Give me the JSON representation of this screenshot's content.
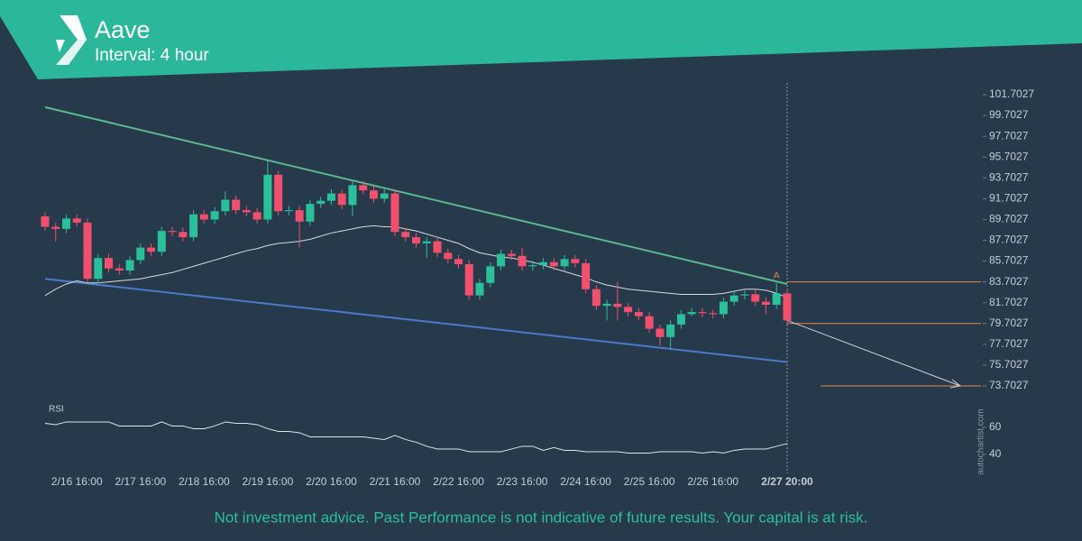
{
  "header": {
    "title": "Aave",
    "subtitle": "Interval: 4 hour"
  },
  "chart_data": [
    {
      "type": "candlestick",
      "categories": [
        null,
        null,
        null,
        "2/16 16:00",
        null,
        null,
        null,
        null,
        null,
        "2/17 16:00",
        null,
        null,
        null,
        null,
        null,
        "2/18 16:00",
        null,
        null,
        null,
        null,
        null,
        "2/19 16:00",
        null,
        null,
        null,
        null,
        null,
        "2/20 16:00",
        null,
        null,
        null,
        null,
        null,
        "2/21 16:00",
        null,
        null,
        null,
        null,
        null,
        "2/22 16:00",
        null,
        null,
        null,
        null,
        null,
        "2/23 16:00",
        null,
        null,
        null,
        null,
        null,
        "2/24 16:00",
        null,
        null,
        null,
        null,
        null,
        "2/25 16:00",
        null,
        null,
        null,
        null,
        null,
        "2/26 16:00",
        null,
        null,
        null,
        null,
        null,
        null,
        "2/27 20:00"
      ],
      "open": [
        90.0,
        89.0,
        88.8,
        89.8,
        89.4,
        84.0,
        86.0,
        85.0,
        84.8,
        85.8,
        87.0,
        86.6,
        88.6,
        88.5,
        88.0,
        90.2,
        89.7,
        90.5,
        91.6,
        90.6,
        90.4,
        89.7,
        94.0,
        90.5,
        90.6,
        89.5,
        91.2,
        91.5,
        92.2,
        91.1,
        93.0,
        92.5,
        91.7,
        92.2,
        88.5,
        88.0,
        87.4,
        87.6,
        86.5,
        85.9,
        85.4,
        82.4,
        83.6,
        85.2,
        86.4,
        86.2,
        85.2,
        85.3,
        85.6,
        85.2,
        85.9,
        85.5,
        83.0,
        81.4,
        81.6,
        81.3,
        80.8,
        80.4,
        79.2,
        78.4,
        79.6,
        80.6,
        80.8,
        80.7,
        80.6,
        81.8,
        82.4,
        82.5,
        81.8,
        81.5,
        82.6
      ],
      "high": [
        90.4,
        89.4,
        90.2,
        90.2,
        89.8,
        86.4,
        86.4,
        85.4,
        86.2,
        87.4,
        87.4,
        89.0,
        89.0,
        88.9,
        90.6,
        90.6,
        90.9,
        92.4,
        92.0,
        91.0,
        90.8,
        95.4,
        94.4,
        91.0,
        91.0,
        91.6,
        91.9,
        92.6,
        92.6,
        93.4,
        93.4,
        92.9,
        92.6,
        92.6,
        88.9,
        88.4,
        88.0,
        88.0,
        86.9,
        86.3,
        85.8,
        84.0,
        85.6,
        86.8,
        86.8,
        87.0,
        85.7,
        86.0,
        86.0,
        86.3,
        86.3,
        85.9,
        83.4,
        82.0,
        83.7,
        81.7,
        81.2,
        80.8,
        79.6,
        80.0,
        81.0,
        81.2,
        81.2,
        81.0,
        82.2,
        82.8,
        82.9,
        82.9,
        82.2,
        83.6,
        83.0
      ],
      "low": [
        88.6,
        87.6,
        88.4,
        89.0,
        83.6,
        83.6,
        84.6,
        84.4,
        84.4,
        85.4,
        86.2,
        86.2,
        88.1,
        87.6,
        87.6,
        89.3,
        89.3,
        90.1,
        90.2,
        90.0,
        89.3,
        89.3,
        90.1,
        90.1,
        87.0,
        89.1,
        90.8,
        91.1,
        90.7,
        90.0,
        92.1,
        91.3,
        91.3,
        88.1,
        87.6,
        87.0,
        86.0,
        86.1,
        85.5,
        85.0,
        82.0,
        82.0,
        83.2,
        84.8,
        85.8,
        84.8,
        84.8,
        84.9,
        84.8,
        84.8,
        85.1,
        82.6,
        81.0,
        80.0,
        80.0,
        80.4,
        80.0,
        78.8,
        77.6,
        77.2,
        79.2,
        80.4,
        80.3,
        80.2,
        80.2,
        81.4,
        82.0,
        81.4,
        80.6,
        81.1,
        79.6
      ],
      "close": [
        89.0,
        88.8,
        89.8,
        89.4,
        84.0,
        86.0,
        85.0,
        84.8,
        85.8,
        87.0,
        86.6,
        88.6,
        88.5,
        88.0,
        90.2,
        89.7,
        90.5,
        91.6,
        90.6,
        90.4,
        89.7,
        94.0,
        90.5,
        90.6,
        89.5,
        91.2,
        91.5,
        92.2,
        91.1,
        93.0,
        92.5,
        91.7,
        92.2,
        88.5,
        88.0,
        87.4,
        87.6,
        86.5,
        85.9,
        85.4,
        82.4,
        83.6,
        85.2,
        86.4,
        86.2,
        85.2,
        85.3,
        85.6,
        85.2,
        85.9,
        85.5,
        83.0,
        81.4,
        81.6,
        81.3,
        80.8,
        80.4,
        79.2,
        78.4,
        79.6,
        80.6,
        80.8,
        80.7,
        80.6,
        81.8,
        82.4,
        82.5,
        81.8,
        81.5,
        82.6,
        80.0
      ],
      "up_color": "#2bbf9a",
      "down_color": "#f0506e",
      "ylim": [
        72.66,
        102.57
      ],
      "yticks": [
        101.7027,
        99.7027,
        97.7027,
        95.7027,
        93.7027,
        91.7027,
        89.7027,
        87.7027,
        85.7027,
        83.7027,
        81.7027,
        79.7027,
        77.7027,
        75.7027,
        73.7027
      ],
      "moving_average": {
        "color": "#d5dbe0",
        "values": [
          82.4,
          83.0,
          83.5,
          83.8,
          83.6,
          83.6,
          83.7,
          83.8,
          83.9,
          84.0,
          84.2,
          84.4,
          84.6,
          84.9,
          85.2,
          85.5,
          85.8,
          86.1,
          86.4,
          86.7,
          86.9,
          87.2,
          87.4,
          87.5,
          87.6,
          87.8,
          88.1,
          88.4,
          88.6,
          88.8,
          89.0,
          89.1,
          89.0,
          89.0,
          88.8,
          88.6,
          88.3,
          88.0,
          87.7,
          87.4,
          86.9,
          86.5,
          86.3,
          86.1,
          86.0,
          85.8,
          85.6,
          85.3,
          85.0,
          84.7,
          84.4,
          84.1,
          83.7,
          83.4,
          83.2,
          83.0,
          82.9,
          82.8,
          82.7,
          82.6,
          82.5,
          82.5,
          82.5,
          82.5,
          82.6,
          82.8,
          83.0,
          83.0,
          82.9,
          82.6,
          82.2
        ]
      },
      "upper_trendline": {
        "color": "#5fb88c",
        "values": [
          100.5,
          83.5
        ]
      },
      "lower_trendline": {
        "color": "#4a7bc8",
        "values": [
          84.0,
          76.0
        ]
      },
      "levels": [
        83.7027,
        79.7027,
        73.7027
      ],
      "level_color": "#e8834a",
      "annotation": "A"
    },
    {
      "type": "line",
      "title": "RSI",
      "color": "#dfe4e8",
      "values": [
        63,
        62,
        64,
        64,
        64,
        64,
        64,
        61,
        61,
        61,
        61,
        64,
        61,
        61,
        59,
        59,
        61,
        64,
        63,
        63,
        62,
        59,
        57,
        57,
        56,
        53,
        53,
        53,
        53,
        53,
        53,
        52,
        51,
        54,
        51,
        49,
        46,
        44,
        44,
        44,
        42,
        42,
        42,
        42,
        44,
        46,
        46,
        43,
        45,
        43,
        43,
        42,
        42,
        42,
        42,
        41,
        41,
        41,
        42,
        42,
        42,
        42,
        41,
        42,
        41,
        43,
        44,
        44,
        44,
        46,
        48
      ],
      "ylim": [
        29.3,
        79.3
      ],
      "yticks": [
        60,
        40
      ]
    }
  ],
  "watermark": "autochartist.com",
  "footer": "Not investment advice. Past Performance is not indicative of future results. Your capital is at risk."
}
